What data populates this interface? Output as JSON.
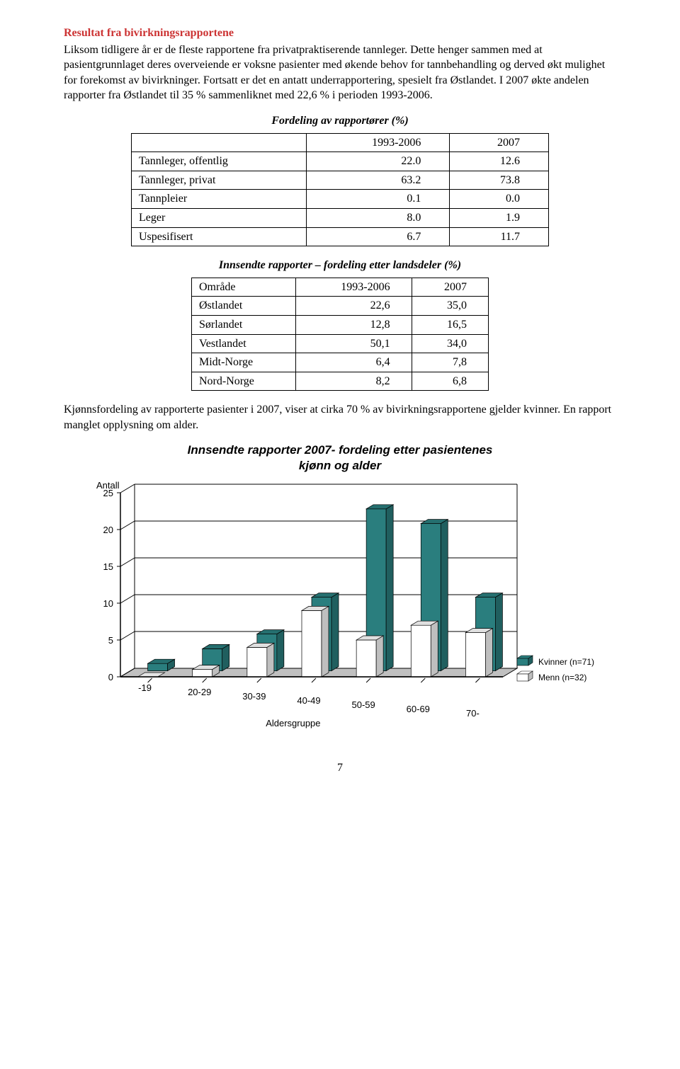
{
  "section_title": "Resultat fra bivirkningsrapportene",
  "para1": "Liksom tidligere år er de fleste rapportene fra privatpraktiserende tannleger. Dette henger sammen med at pasientgrunnlaget deres overveiende er voksne pasienter med økende behov for tannbehandling og derved økt mulighet for forekomst av bivirkninger. Fortsatt er det en antatt underrapportering, spesielt fra Østlandet. I 2007 økte andelen rapporter fra Østlandet til 35 % sammenliknet med 22,6 % i perioden 1993-2006.",
  "table1": {
    "title": "Fordeling av rapportører (%)",
    "headers": [
      "",
      "1993-2006",
      "2007"
    ],
    "rows": [
      [
        "Tannleger, offentlig",
        "22.0",
        "12.6"
      ],
      [
        "Tannleger, privat",
        "63.2",
        "73.8"
      ],
      [
        "Tannpleier",
        "0.1",
        "0.0"
      ],
      [
        "Leger",
        "8.0",
        "1.9"
      ],
      [
        "Uspesifisert",
        "6.7",
        "11.7"
      ]
    ]
  },
  "table2": {
    "title": "Innsendte rapporter – fordeling etter landsdeler (%)",
    "headers": [
      "Område",
      "1993-2006",
      "2007"
    ],
    "rows": [
      [
        "Østlandet",
        "22,6",
        "35,0"
      ],
      [
        "Sørlandet",
        "12,8",
        "16,5"
      ],
      [
        "Vestlandet",
        "50,1",
        "34,0"
      ],
      [
        "Midt-Norge",
        "6,4",
        "7,8"
      ],
      [
        "Nord-Norge",
        "8,2",
        "6,8"
      ]
    ]
  },
  "para2": "Kjønnsfordeling av rapporterte pasienter i 2007, viser at cirka 70 % av bivirkningsrapportene gjelder kvinner. En rapport manglet opplysning om alder.",
  "chart": {
    "title_line1": "Innsendte rapporter 2007- fordeling etter pasientenes",
    "title_line2": "kjønn og alder",
    "type": "bar-3d-clustered",
    "y_label": "Antall",
    "y_max": 25,
    "y_tick_step": 5,
    "y_ticks": [
      0,
      5,
      10,
      15,
      20,
      25
    ],
    "x_label": "Aldersgruppe",
    "categories": [
      "-19",
      "20-29",
      "30-39",
      "40-49",
      "50-59",
      "60-69",
      "70-"
    ],
    "series": [
      {
        "name": "Menn (n=32)",
        "color": "#ffffff",
        "values": [
          0,
          1,
          4,
          9,
          5,
          7,
          6
        ]
      },
      {
        "name": "Kvinner (n=71)",
        "color": "#2a7e7e",
        "values": [
          1,
          3,
          5,
          10,
          22,
          20,
          10
        ]
      }
    ],
    "axis_color": "#000000",
    "grid_color": "#000000",
    "floor_color": "#c0c0c0",
    "label_fontsize": 13,
    "tick_fontsize": 13,
    "legend": [
      "Kvinner (n=71)",
      "Menn (n=32)"
    ]
  },
  "page_number": "7"
}
